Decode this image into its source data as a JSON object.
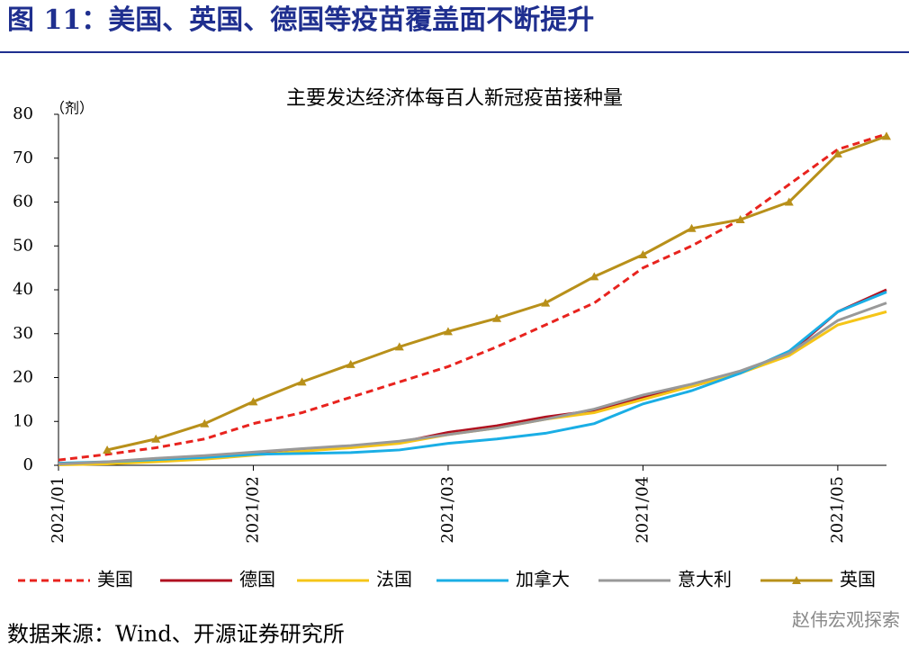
{
  "header": {
    "title": "图 11：美国、英国、德国等疫苗覆盖面不断提升"
  },
  "chart_data": {
    "type": "line",
    "title": "主要发达经济体每百人新冠疫苗接种量",
    "y_unit": "（剂）",
    "categories": [
      "2021/01",
      null,
      null,
      null,
      "2021/02",
      null,
      null,
      null,
      "2021/03",
      null,
      null,
      null,
      "2021/04",
      null,
      null,
      null,
      "2021/05",
      null
    ],
    "series": [
      {
        "name": "美国",
        "color": "#e8231e",
        "dash": true,
        "values": [
          1.2,
          2.5,
          4,
          6,
          9.5,
          12,
          15.5,
          19,
          22.5,
          27,
          32,
          37,
          45,
          50,
          56,
          64,
          72,
          75.5
        ]
      },
      {
        "name": "德国",
        "color": "#b01020",
        "values": [
          0.3,
          0.7,
          1.2,
          1.8,
          2.8,
          3.5,
          4.3,
          5.2,
          7.5,
          9,
          11,
          12.5,
          15.5,
          18,
          21,
          25.5,
          35,
          40
        ]
      },
      {
        "name": "法国",
        "color": "#f5c518",
        "values": [
          0.1,
          0.3,
          0.8,
          1.4,
          2.3,
          3.2,
          4,
          5,
          7,
          8.5,
          10.5,
          12,
          15,
          18,
          21,
          25,
          32,
          35
        ]
      },
      {
        "name": "加拿大",
        "color": "#1aaee5",
        "values": [
          0.5,
          0.8,
          1.3,
          1.8,
          2.5,
          2.7,
          2.9,
          3.5,
          5,
          6,
          7.3,
          9.5,
          14,
          17,
          21,
          26,
          35,
          39.5
        ]
      },
      {
        "name": "意大利",
        "color": "#999999",
        "values": [
          0.3,
          0.8,
          1.6,
          2.2,
          3,
          3.8,
          4.5,
          5.5,
          7,
          8.5,
          10.5,
          12.8,
          16,
          18.5,
          21.5,
          25.5,
          33,
          37
        ]
      },
      {
        "name": "英国",
        "color": "#b8901a",
        "marker": "triangle",
        "values": [
          null,
          3.5,
          6,
          9.5,
          14.5,
          19,
          23,
          27,
          30.5,
          33.5,
          37,
          43,
          48,
          54,
          56,
          60,
          71,
          75
        ]
      }
    ],
    "ylim": [
      0,
      80
    ],
    "yticks": [
      0,
      10,
      20,
      30,
      40,
      50,
      60,
      70,
      80
    ]
  },
  "footer": {
    "source": "数据来源：Wind、开源证券研究所",
    "watermark": "赵伟宏观探索"
  }
}
